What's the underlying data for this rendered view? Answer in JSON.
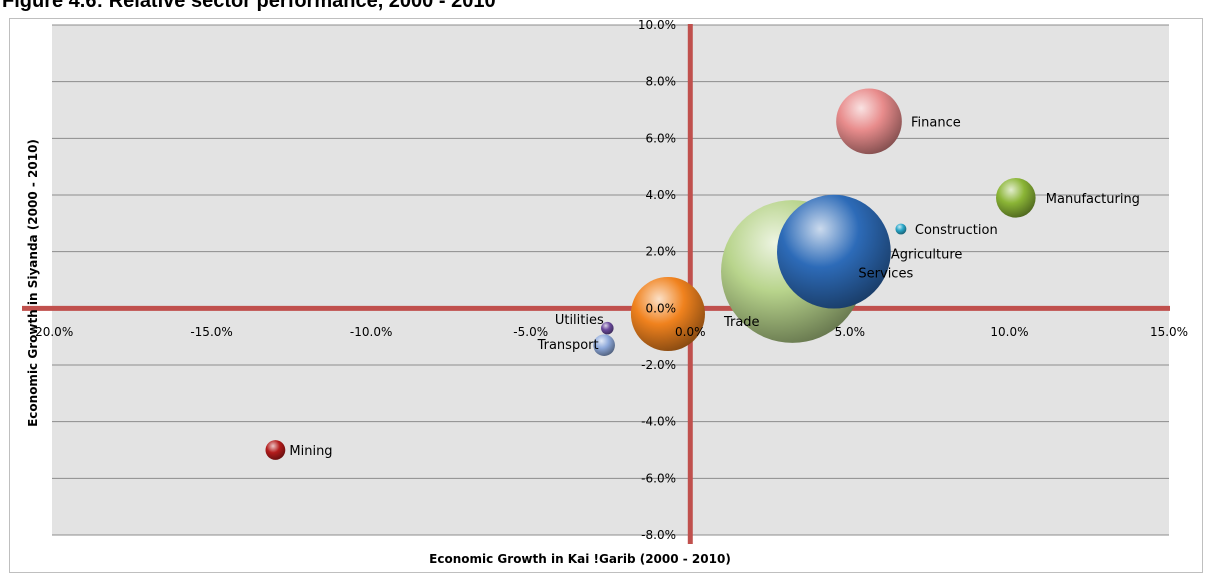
{
  "page_title": "Figure 4.6: Relative sector performance, 2000 - 2010",
  "chart_data": {
    "type": "bubble",
    "title": "",
    "xlabel": "Economic Growth in Kai !Garib (2000 - 2010)",
    "ylabel": "Economic Growth in Siyanda (2000 - 2010)",
    "xlim": [
      -0.2,
      0.15
    ],
    "ylim": [
      -0.08,
      0.1
    ],
    "x_ticks": [
      -0.2,
      -0.15,
      -0.1,
      -0.05,
      0.0,
      0.05,
      0.1,
      0.15
    ],
    "x_tick_labels": [
      "-20.0%",
      "-15.0%",
      "-10.0%",
      "-5.0%",
      "0.0%",
      "5.0%",
      "10.0%",
      "15.0%"
    ],
    "y_ticks": [
      -0.08,
      -0.06,
      -0.04,
      -0.02,
      0.0,
      0.02,
      0.04,
      0.06,
      0.08,
      0.1
    ],
    "y_tick_labels": [
      "-8.0%",
      "-6.0%",
      "-4.0%",
      "-2.0%",
      "0.0%",
      "2.0%",
      "4.0%",
      "6.0%",
      "8.0%",
      "10.0%"
    ],
    "grid": true,
    "legend": "none",
    "colors": {
      "plot_background": "#e3e3e3",
      "gridline": "#8c8c8c",
      "quadrant_lines": "#c0504d"
    },
    "series": [
      {
        "label": "Mining",
        "x": -0.13,
        "y": -0.05,
        "size": 1.0,
        "color": "#b31c1c"
      },
      {
        "label": "Utilities",
        "x": -0.026,
        "y": -0.007,
        "size": 0.4,
        "color": "#6a4a9c"
      },
      {
        "label": "Transport",
        "x": -0.027,
        "y": -0.013,
        "size": 1.2,
        "color": "#8ea9db"
      },
      {
        "label": "Trade",
        "x": -0.007,
        "y": -0.002,
        "size": 14.0,
        "color": "#f0821e"
      },
      {
        "label": "Agriculture",
        "x": 0.045,
        "y": 0.02,
        "size": 33.0,
        "color": "#2d6bb8"
      },
      {
        "label": "Services",
        "x": 0.032,
        "y": 0.013,
        "size": 52.0,
        "color": "#b8d48c"
      },
      {
        "label": "Construction",
        "x": 0.066,
        "y": 0.028,
        "size": 0.3,
        "color": "#2aa7c9"
      },
      {
        "label": "Finance",
        "x": 0.056,
        "y": 0.066,
        "size": 11.0,
        "color": "#e88c8c"
      },
      {
        "label": "Manufacturing",
        "x": 0.102,
        "y": 0.039,
        "size": 4.0,
        "color": "#8bb536"
      }
    ]
  }
}
